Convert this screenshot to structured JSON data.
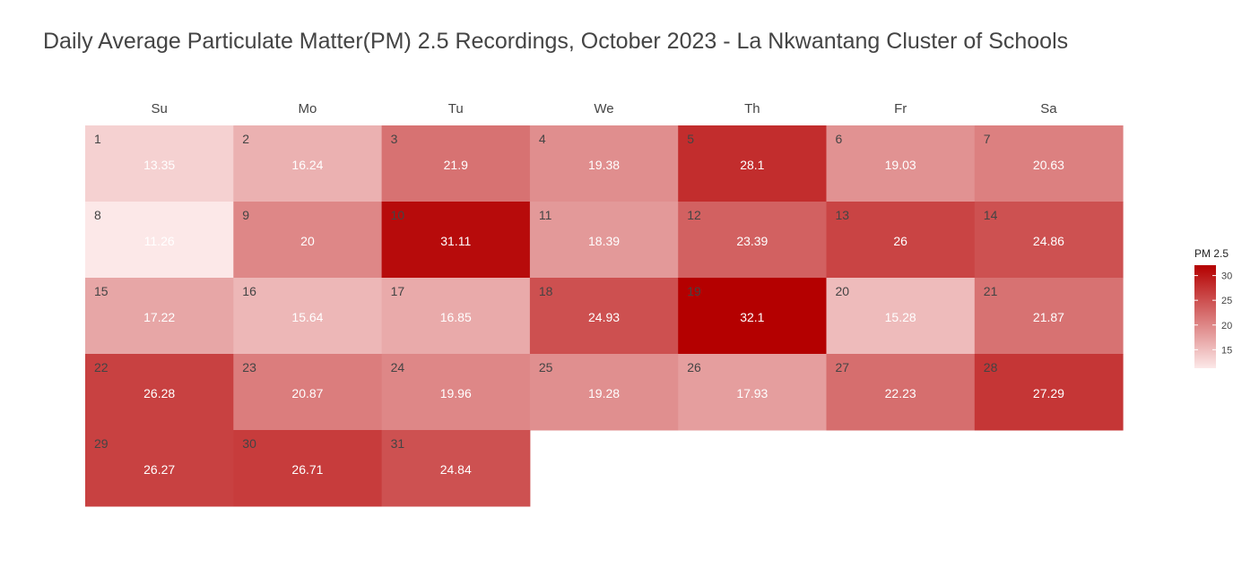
{
  "title": "Daily Average Particulate Matter(PM) 2.5 Recordings, October 2023 - La Nkwantang Cluster of Schools",
  "chart_data": {
    "type": "heatmap",
    "subtype": "calendar",
    "title": "Daily Average Particulate Matter(PM) 2.5 Recordings, October 2023 - La Nkwantang Cluster of Schools",
    "weekdays": [
      "Su",
      "Mo",
      "Tu",
      "We",
      "Th",
      "Fr",
      "Sa"
    ],
    "first_weekday_index": 0,
    "days": [
      1,
      2,
      3,
      4,
      5,
      6,
      7,
      8,
      9,
      10,
      11,
      12,
      13,
      14,
      15,
      16,
      17,
      18,
      19,
      20,
      21,
      22,
      23,
      24,
      25,
      26,
      27,
      28,
      29,
      30,
      31
    ],
    "values": [
      13.35,
      16.24,
      21.9,
      19.38,
      28.1,
      19.03,
      20.63,
      11.26,
      20,
      31.11,
      18.39,
      23.39,
      26,
      24.86,
      17.22,
      15.64,
      16.85,
      24.93,
      32.1,
      15.28,
      21.87,
      26.28,
      20.87,
      19.96,
      19.28,
      17.93,
      22.23,
      27.29,
      26.27,
      26.71,
      24.84
    ],
    "legend": {
      "title": "PM 2.5",
      "ticks": [
        15,
        20,
        25,
        30
      ],
      "range": [
        11.26,
        32.1
      ],
      "low_color": "#fce8e8",
      "high_color": "#b40000",
      "position": "right"
    }
  }
}
